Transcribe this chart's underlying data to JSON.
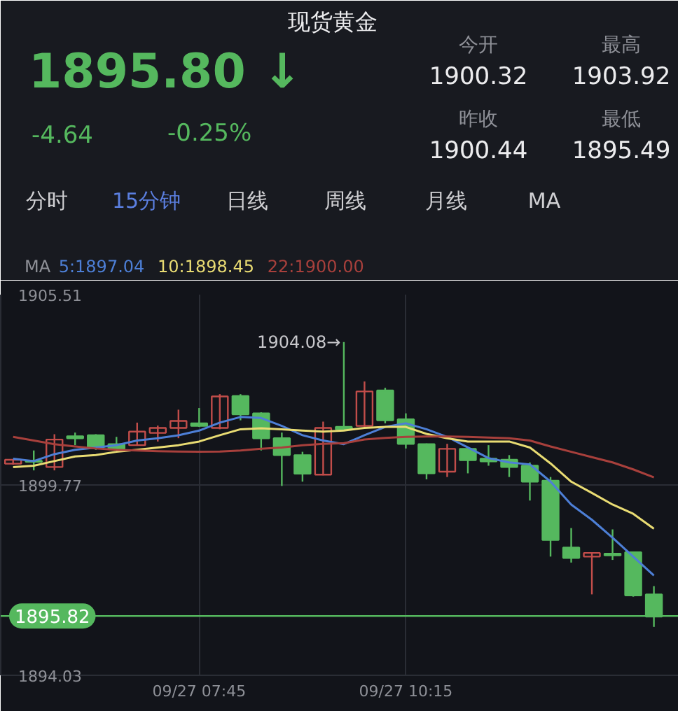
{
  "chart_data": {
    "type": "candlestick",
    "title": "现货黄金",
    "subtitle": "1895.80 ↓",
    "annotations": [
      "-4.64",
      "-0.25%",
      "今开",
      "1900.32",
      "最高",
      "1903.92",
      "昨收",
      "1900.44",
      "最低",
      "1895.49",
      "分时",
      "15分钟",
      "日线",
      "周线",
      "月线",
      "MA",
      "1904.08→"
    ],
    "categories": [
      null,
      null,
      null,
      null,
      null,
      null,
      null,
      null,
      null,
      "09/27 07:45",
      null,
      null,
      null,
      null,
      null,
      null,
      null,
      null,
      null,
      "09/27 10:15",
      null,
      null,
      null,
      null,
      null,
      null,
      null,
      null,
      null,
      null,
      null,
      null
    ],
    "ohlc": [
      [
        1900.41,
        1900.55,
        1900.38,
        1900.53
      ],
      [
        1900.5,
        1900.81,
        1900.21,
        1900.47
      ],
      [
        1900.31,
        1901.3,
        1900.21,
        1901.14
      ],
      [
        1901.24,
        1901.35,
        1900.97,
        1901.18
      ],
      [
        1901.27,
        1901.3,
        1900.83,
        1900.9
      ],
      [
        1901.0,
        1901.22,
        1900.84,
        1900.86
      ],
      [
        1900.97,
        1901.65,
        1900.95,
        1901.38
      ],
      [
        1901.34,
        1901.56,
        1901.08,
        1901.49
      ],
      [
        1901.49,
        1902.04,
        1901.18,
        1901.7
      ],
      [
        1901.63,
        1902.09,
        1901.52,
        1901.55
      ],
      [
        1901.49,
        1902.51,
        1901.45,
        1902.44
      ],
      [
        1902.45,
        1902.51,
        1901.72,
        1901.9
      ],
      [
        1901.93,
        1901.96,
        1900.81,
        1901.18
      ],
      [
        1901.18,
        1901.35,
        1899.74,
        1900.67
      ],
      [
        1900.67,
        1900.77,
        1899.87,
        1900.11
      ],
      [
        1900.08,
        1901.68,
        1900.06,
        1901.49
      ],
      [
        1901.52,
        1904.08,
        1901.4,
        1901.45
      ],
      [
        1901.55,
        1902.89,
        1901.52,
        1902.59
      ],
      [
        1902.62,
        1902.7,
        1901.63,
        1901.72
      ],
      [
        1901.75,
        1901.93,
        1900.87,
        1901.01
      ],
      [
        1901.0,
        1901.02,
        1899.94,
        1900.12
      ],
      [
        1900.17,
        1901.01,
        1900.01,
        1900.86
      ],
      [
        1900.86,
        1900.88,
        1900.12,
        1900.52
      ],
      [
        1900.56,
        1900.97,
        1900.35,
        1900.48
      ],
      [
        1900.53,
        1900.67,
        1900.01,
        1900.31
      ],
      [
        1900.35,
        1900.45,
        1899.3,
        1899.87
      ],
      [
        1899.9,
        1900.01,
        1897.61,
        1898.11
      ],
      [
        1897.88,
        1898.47,
        1897.43,
        1897.57
      ],
      [
        1897.61,
        1897.72,
        1896.47,
        1897.72
      ],
      [
        1897.7,
        1898.43,
        1897.51,
        1897.65
      ],
      [
        1897.74,
        1897.76,
        1896.4,
        1896.44
      ],
      [
        1896.47,
        1896.72,
        1895.49,
        1895.8
      ]
    ],
    "colors": [
      "#c24d4a",
      "#55b85e",
      "#c24d4a",
      "#55b85e",
      "#55b85e",
      "#55b85e",
      "#c24d4a",
      "#c24d4a",
      "#c24d4a",
      "#55b85e",
      "#c24d4a",
      "#55b85e",
      "#55b85e",
      "#55b85e",
      "#55b85e",
      "#c24d4a",
      "#55b85e",
      "#c24d4a",
      "#55b85e",
      "#55b85e",
      "#55b85e",
      "#c24d4a",
      "#55b85e",
      "#55b85e",
      "#55b85e",
      "#55b85e",
      "#55b85e",
      "#55b85e",
      "#c24d4a",
      "#55b85e",
      "#55b85e",
      "#55b85e"
    ],
    "series": [
      {
        "name": "5:1897.04",
        "type": "line",
        "color": "#4d7fd6",
        "values": [
          1900.56,
          1900.49,
          1900.7,
          1900.83,
          1900.9,
          1900.97,
          1901.11,
          1901.18,
          1901.27,
          1901.41,
          1901.65,
          1901.82,
          1901.79,
          1901.55,
          1901.27,
          1901.11,
          1901.0,
          1901.27,
          1901.52,
          1901.63,
          1901.45,
          1901.22,
          1900.9,
          1900.58,
          1900.45,
          1900.39,
          1899.87,
          1899.18,
          1898.72,
          1898.18,
          1897.61,
          1897.04
        ]
      },
      {
        "name": "10:1898.45",
        "type": "line",
        "color": "#e9dc73",
        "values": [
          1900.31,
          1900.35,
          1900.49,
          1900.63,
          1900.67,
          1900.77,
          1900.83,
          1900.9,
          1900.97,
          1901.08,
          1901.27,
          1901.45,
          1901.48,
          1901.45,
          1901.41,
          1901.38,
          1901.41,
          1901.49,
          1901.52,
          1901.52,
          1901.31,
          1901.18,
          1901.08,
          1901.08,
          1901.08,
          1900.9,
          1900.42,
          1899.87,
          1899.53,
          1899.18,
          1898.9,
          1898.45
        ]
      },
      {
        "name": "22:1900.00",
        "type": "line",
        "color": "#a8403c",
        "values": [
          1901.22,
          1901.11,
          1901.0,
          1900.93,
          1900.87,
          1900.83,
          1900.81,
          1900.79,
          1900.78,
          1900.77,
          1900.78,
          1900.81,
          1900.86,
          1900.9,
          1900.97,
          1901.01,
          1901.03,
          1901.14,
          1901.19,
          1901.22,
          1901.23,
          1901.23,
          1901.22,
          1901.2,
          1901.18,
          1901.11,
          1900.93,
          1900.77,
          1900.61,
          1900.45,
          1900.24,
          1900.0
        ]
      }
    ],
    "legend_title": "MA",
    "legend": "top left",
    "ylim": [
      1894.03,
      1905.51
    ],
    "yticks": [
      1894.03,
      1899.77,
      1905.51
    ],
    "ref_lines": [
      {
        "axis": "y",
        "value": 1895.82,
        "label": "1895.82",
        "color": "#55b85e"
      }
    ],
    "grid": true
  }
}
